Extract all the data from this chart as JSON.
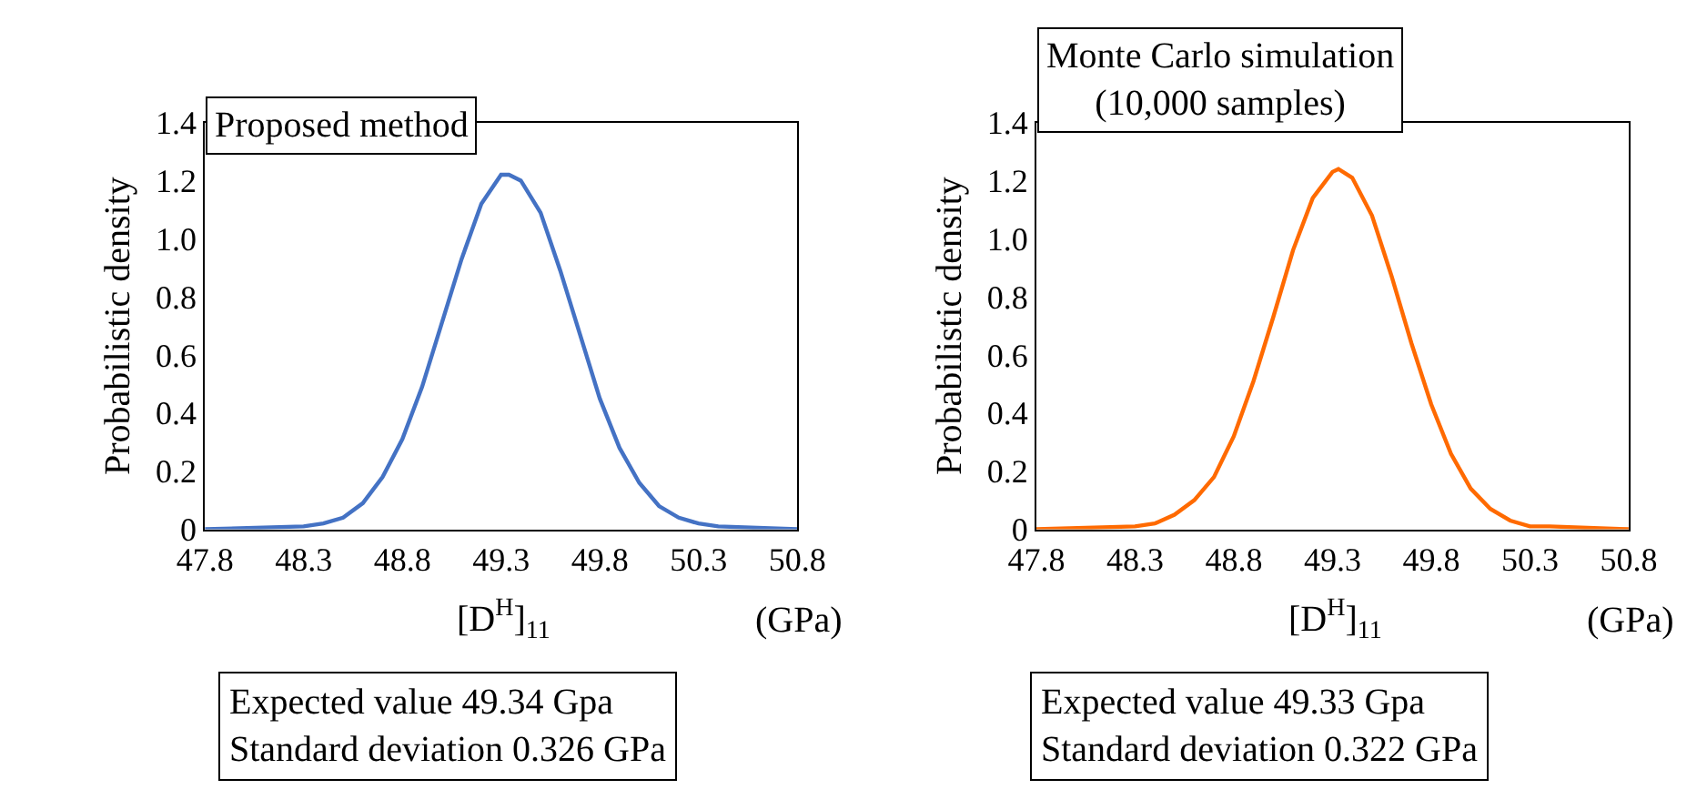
{
  "chart_data": [
    {
      "type": "line",
      "title": "Proposed method",
      "xlabel": "[D$^{H}$]$_{11}$",
      "ylabel": "Probabilistic density",
      "x": [
        47.8,
        48.3,
        48.4,
        48.5,
        48.6,
        48.7,
        48.8,
        48.9,
        49.0,
        49.1,
        49.2,
        49.3,
        49.34,
        49.4,
        49.5,
        49.6,
        49.7,
        49.8,
        49.9,
        50.0,
        50.1,
        50.2,
        50.3,
        50.4,
        50.8
      ],
      "series": [
        {
          "color": "#4472c4",
          "values": [
            0,
            0.01,
            0.02,
            0.04,
            0.09,
            0.18,
            0.31,
            0.49,
            0.71,
            0.93,
            1.12,
            1.22,
            1.22,
            1.2,
            1.09,
            0.89,
            0.67,
            0.45,
            0.28,
            0.16,
            0.08,
            0.04,
            0.02,
            0.01,
            0
          ]
        }
      ],
      "xlim": [
        47.8,
        50.8
      ],
      "xticks": [
        47.8,
        48.3,
        48.8,
        49.3,
        49.8,
        50.3,
        50.8
      ],
      "ylim": [
        0,
        1.4
      ],
      "yticks": [
        0,
        0.2,
        0.4,
        0.6,
        0.8,
        {
          "value": 1,
          "label": "1.0"
        },
        1.2,
        1.4
      ],
      "marker": "none",
      "line_style": "solid",
      "annotations": [
        "(GPa)",
        "Expected value 49.34 Gpa\nStandard deviation 0.326 GPa"
      ]
    },
    {
      "type": "line",
      "title": "Monte Carlo simulation\n(10,000 samples)",
      "xlabel": "[D$^{H}$]$_{11}$",
      "ylabel": "Probabilistic density",
      "x": [
        47.8,
        48.3,
        48.4,
        48.5,
        48.6,
        48.7,
        48.8,
        48.9,
        49.0,
        49.1,
        49.2,
        49.3,
        49.33,
        49.4,
        49.5,
        49.6,
        49.7,
        49.8,
        49.9,
        50.0,
        50.1,
        50.2,
        50.3,
        50.4,
        50.8
      ],
      "series": [
        {
          "color": "#ff6a00",
          "values": [
            0,
            0.01,
            0.02,
            0.05,
            0.1,
            0.18,
            0.32,
            0.51,
            0.73,
            0.96,
            1.14,
            1.23,
            1.24,
            1.21,
            1.08,
            0.87,
            0.64,
            0.43,
            0.26,
            0.14,
            0.07,
            0.03,
            0.01,
            0.01,
            0
          ]
        }
      ],
      "xlim": [
        47.8,
        50.8
      ],
      "xticks": [
        47.8,
        48.3,
        48.8,
        49.3,
        49.8,
        50.3,
        50.8
      ],
      "ylim": [
        0,
        1.4
      ],
      "yticks": [
        0,
        0.2,
        0.4,
        0.6,
        0.8,
        {
          "value": 1,
          "label": "1.0"
        },
        1.2,
        1.4
      ],
      "marker": "none",
      "line_style": "solid",
      "annotations": [
        "(GPa)",
        "Expected value 49.33 Gpa\nStandard deviation 0.322 GPa"
      ]
    }
  ]
}
